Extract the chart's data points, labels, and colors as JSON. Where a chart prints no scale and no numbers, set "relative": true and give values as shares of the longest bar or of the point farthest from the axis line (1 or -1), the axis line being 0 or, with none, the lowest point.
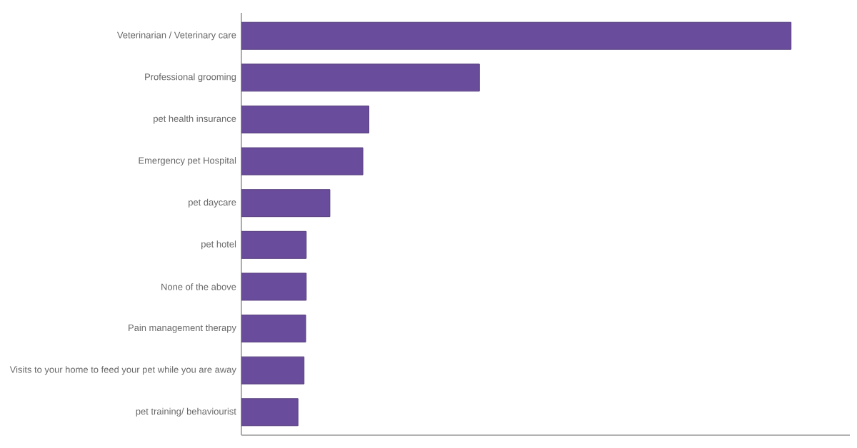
{
  "chart_data": {
    "type": "bar",
    "orientation": "horizontal",
    "relative": true,
    "color": "#6a4c9c",
    "categories": [
      "Veterinarian / Veterinary care",
      "Professional grooming",
      "pet health insurance",
      "Emergency pet Hospital",
      "pet daycare",
      "pet hotel",
      "None of the above",
      "Pain management therapy",
      "Visits to your home to feed your pet while you are away",
      "pet training/ behaviourist"
    ],
    "values": [
      1,
      0.433,
      0.232,
      0.221,
      0.161,
      0.118,
      0.118,
      0.117,
      0.114,
      0.103
    ]
  }
}
